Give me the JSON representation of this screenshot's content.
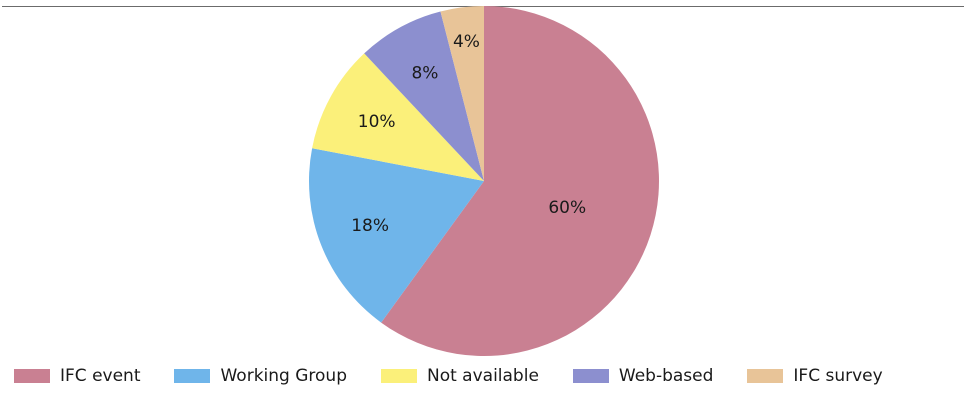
{
  "chart_data": {
    "type": "pie",
    "title": "",
    "slices": [
      {
        "label": "IFC event",
        "value": 60,
        "display": "60%",
        "color": "#c98092"
      },
      {
        "label": "Working Group",
        "value": 18,
        "display": "18%",
        "color": "#6fb5ea"
      },
      {
        "label": "Not available",
        "value": 10,
        "display": "10%",
        "color": "#fbf07a"
      },
      {
        "label": "Web-based",
        "value": 8,
        "display": "8%",
        "color": "#8c8fcf"
      },
      {
        "label": "IFC survey",
        "value": 4,
        "display": "4%",
        "color": "#e8c498"
      }
    ],
    "legend_position": "bottom"
  }
}
